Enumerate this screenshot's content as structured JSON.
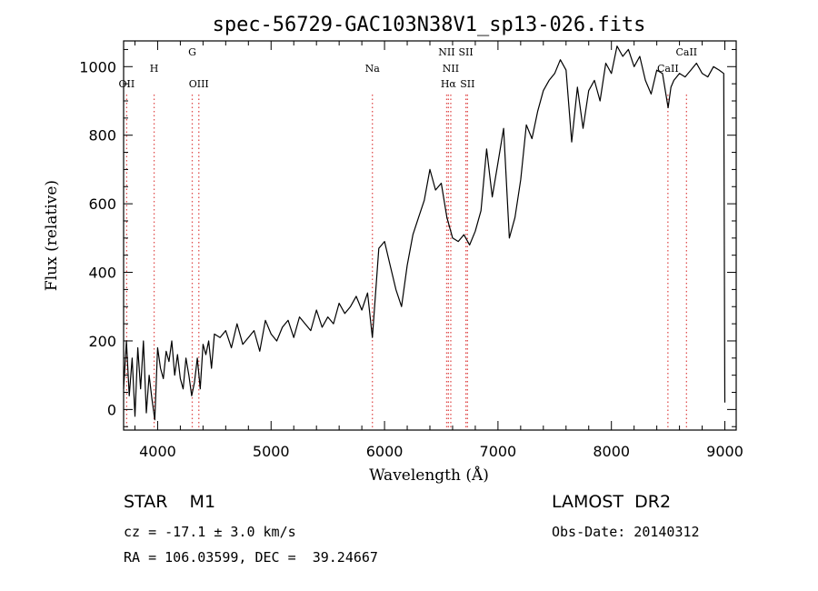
{
  "chart_data": {
    "type": "line",
    "title": "spec-56729-GAC103N38V1_sp13-026.fits",
    "xlabel": "Wavelength (Å)",
    "ylabel": "Flux (relative)",
    "xlim": [
      3700,
      9100
    ],
    "ylim": [
      -60,
      1075
    ],
    "xticks": [
      4000,
      5000,
      6000,
      7000,
      8000,
      9000
    ],
    "yticks": [
      0,
      200,
      400,
      600,
      800,
      1000
    ],
    "grid": false,
    "line_color": "#000000",
    "marker_color": "#e05050",
    "spectral_lines": [
      {
        "label": "OII",
        "x": 3727,
        "row": 3,
        "color": "#e05050"
      },
      {
        "label": "H",
        "x": 3969,
        "row": 2,
        "color": "#e05050"
      },
      {
        "label": "G",
        "x": 4305,
        "row": 1,
        "color": "#e05050"
      },
      {
        "label": "OIII",
        "x": 4363,
        "row": 3,
        "color": "#e05050"
      },
      {
        "label": "Na",
        "x": 5893,
        "row": 2,
        "color": "#e05050"
      },
      {
        "label": "NII",
        "x": 6548,
        "row": 1,
        "color": "#e05050"
      },
      {
        "label": "NII",
        "x": 6584,
        "row": 2,
        "color": "#e05050"
      },
      {
        "label": "Hα",
        "x": 6563,
        "row": 3,
        "color": "#e05050"
      },
      {
        "label": "SII",
        "x": 6717,
        "row": 1,
        "color": "#e05050"
      },
      {
        "label": "SII",
        "x": 6731,
        "row": 3,
        "color": "#e05050"
      },
      {
        "label": "CaII",
        "x": 8498,
        "row": 2,
        "color": "#e05050"
      },
      {
        "label": "CaII",
        "x": 8662,
        "row": 1,
        "color": "#e05050"
      }
    ],
    "series": [
      {
        "x": [
          3700,
          3725,
          3750,
          3775,
          3800,
          3825,
          3850,
          3875,
          3900,
          3925,
          3950,
          3975,
          4000,
          4025,
          4050,
          4075,
          4100,
          4125,
          4150,
          4175,
          4200,
          4225,
          4250,
          4275,
          4300,
          4325,
          4350,
          4375,
          4400,
          4425,
          4450,
          4475,
          4500,
          4550,
          4600,
          4650,
          4700,
          4750,
          4800,
          4850,
          4900,
          4950,
          5000,
          5050,
          5100,
          5150,
          5200,
          5250,
          5300,
          5350,
          5400,
          5450,
          5500,
          5550,
          5600,
          5650,
          5700,
          5750,
          5800,
          5850,
          5893,
          5950,
          6000,
          6050,
          6100,
          6150,
          6200,
          6250,
          6300,
          6350,
          6400,
          6450,
          6500,
          6550,
          6600,
          6650,
          6700,
          6750,
          6800,
          6850,
          6900,
          6950,
          7000,
          7050,
          7100,
          7150,
          7200,
          7250,
          7300,
          7350,
          7400,
          7450,
          7500,
          7550,
          7600,
          7650,
          7700,
          7750,
          7800,
          7850,
          7900,
          7950,
          8000,
          8050,
          8100,
          8150,
          8200,
          8250,
          8300,
          8350,
          8400,
          8450,
          8500,
          8525,
          8550,
          8600,
          8650,
          8700,
          8750,
          8800,
          8850,
          8900,
          8950,
          8990,
          9000
        ],
        "y": [
          60,
          200,
          40,
          150,
          -20,
          180,
          60,
          200,
          -10,
          100,
          30,
          -30,
          180,
          120,
          90,
          170,
          140,
          200,
          100,
          160,
          90,
          60,
          150,
          100,
          40,
          80,
          150,
          60,
          190,
          160,
          200,
          120,
          220,
          210,
          230,
          180,
          250,
          190,
          210,
          230,
          170,
          260,
          220,
          200,
          240,
          260,
          210,
          270,
          250,
          230,
          290,
          240,
          270,
          250,
          310,
          280,
          300,
          330,
          290,
          340,
          210,
          470,
          490,
          420,
          350,
          300,
          420,
          510,
          560,
          610,
          700,
          640,
          660,
          560,
          500,
          490,
          510,
          480,
          520,
          580,
          760,
          620,
          720,
          820,
          500,
          560,
          670,
          830,
          790,
          870,
          930,
          960,
          980,
          1020,
          990,
          780,
          940,
          820,
          930,
          960,
          900,
          1010,
          980,
          1060,
          1030,
          1050,
          1000,
          1030,
          960,
          920,
          990,
          980,
          880,
          940,
          960,
          980,
          970,
          990,
          1010,
          980,
          970,
          1000,
          990,
          980,
          20
        ]
      }
    ]
  },
  "info": {
    "object_class": "STAR    M1",
    "survey": "LAMOST  DR2",
    "redshift": "cz = -17.1 ± 3.0 km/s",
    "obs_date": "Obs-Date: 20140312",
    "coords": "RA = 106.03599, DEC =  39.24667"
  }
}
